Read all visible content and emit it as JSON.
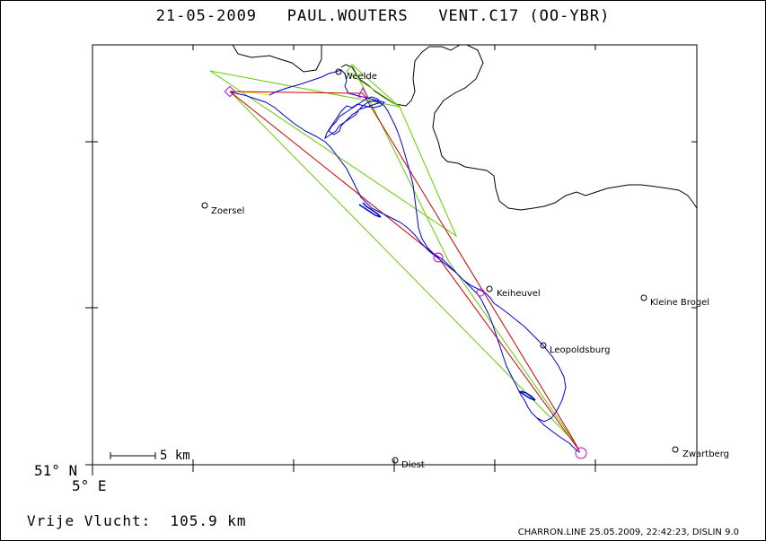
{
  "header": {
    "date": "21-05-2009",
    "pilot": "PAUL.WOUTERS",
    "glider": "VENT.C17 (OO-YBR)"
  },
  "axes": {
    "lat_label": "51° N",
    "lon_label": "5° E"
  },
  "scale_bar": {
    "label": "5 km"
  },
  "places": [
    {
      "name": "Weelde"
    },
    {
      "name": "Zoersel"
    },
    {
      "name": "Keiheuvel"
    },
    {
      "name": "Kleine Brogel"
    },
    {
      "name": "Leopoldsburg"
    },
    {
      "name": "Diest"
    },
    {
      "name": "Zwartberg"
    }
  ],
  "footer": {
    "flight_label": "Vrije Vlucht:",
    "flight_distance": "105.9 km",
    "credit": "CHARRON.LINE 25.05.2009, 22:42:23, DISLIN 9.0"
  },
  "colors": {
    "track": "#0000cc",
    "route": "#cc0000",
    "sector": "#66cc00",
    "start_leg": "#e6e600",
    "turnpoint": "#cc00cc",
    "border": "#000000"
  }
}
